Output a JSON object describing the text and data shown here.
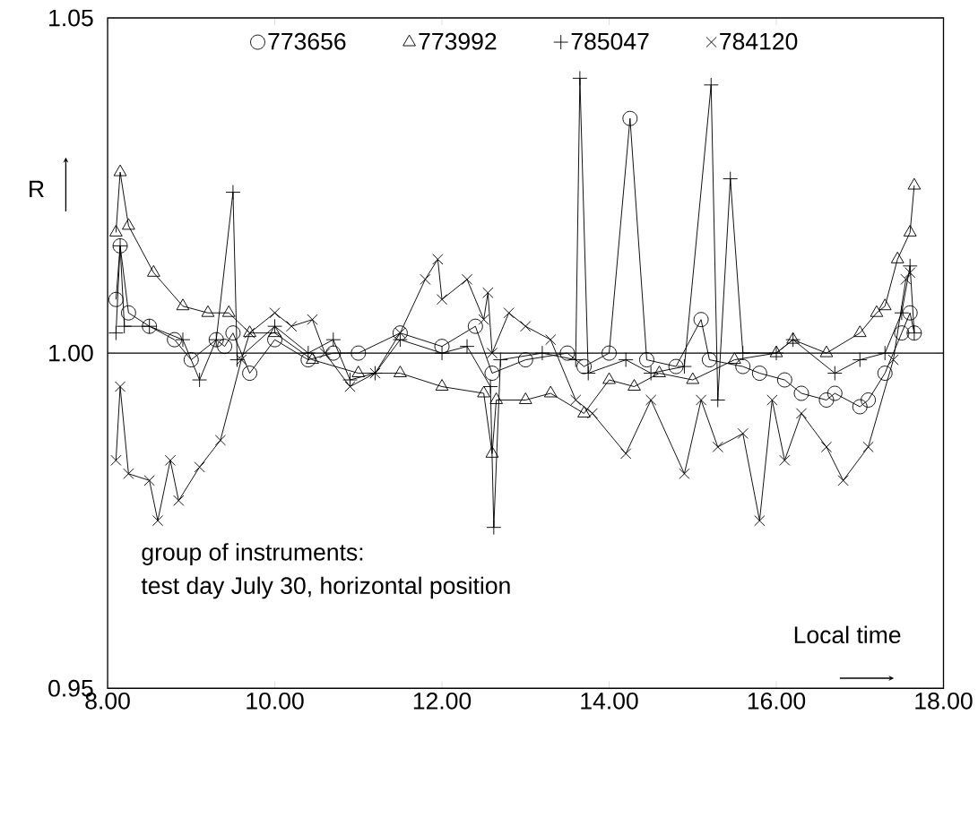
{
  "chart_data": {
    "type": "line",
    "xlabel": "Local time",
    "ylabel": "R",
    "annotations": [
      "group of instruments:",
      "test day July 30, horizontal position"
    ],
    "xlim": [
      8,
      18
    ],
    "ylim": [
      0.95,
      1.05
    ],
    "xticks": [
      {
        "value": 8,
        "label": "8.00"
      },
      {
        "value": 10,
        "label": "10.00"
      },
      {
        "value": 12,
        "label": "12.00"
      },
      {
        "value": 14,
        "label": "14.00"
      },
      {
        "value": 16,
        "label": "16.00"
      },
      {
        "value": 18,
        "label": "18.00"
      }
    ],
    "yticks": [
      {
        "value": 0.95,
        "label": "0.95"
      },
      {
        "value": 1.0,
        "label": "1.00"
      },
      {
        "value": 1.05,
        "label": "1.05"
      }
    ],
    "grid": false,
    "legend": "top",
    "ref_lines": [
      {
        "axis": "y",
        "value": 1.0,
        "color": "#000000"
      }
    ],
    "series": [
      {
        "name": "773656",
        "color": "#000000",
        "marker": "circle",
        "x": [
          8.1,
          8.15,
          8.25,
          8.5,
          8.8,
          9.0,
          9.3,
          9.4,
          9.5,
          9.7,
          10.0,
          10.4,
          10.7,
          11.0,
          11.5,
          12.0,
          12.4,
          12.6,
          13.0,
          13.5,
          13.7,
          14.0,
          14.25,
          14.45,
          14.8,
          15.1,
          15.2,
          15.6,
          15.8,
          16.1,
          16.3,
          16.6,
          16.7,
          17.0,
          17.1,
          17.3,
          17.5,
          17.6,
          17.65
        ],
        "values": [
          1.008,
          1.016,
          1.006,
          1.004,
          1.002,
          0.999,
          1.002,
          1.001,
          1.003,
          0.997,
          1.002,
          0.999,
          1.0,
          1.0,
          1.003,
          1.001,
          1.004,
          0.997,
          0.999,
          1.0,
          0.998,
          1.0,
          1.035,
          0.999,
          0.998,
          1.005,
          0.999,
          0.998,
          0.997,
          0.996,
          0.994,
          0.993,
          0.994,
          0.992,
          0.993,
          0.997,
          1.003,
          1.006,
          1.003
        ]
      },
      {
        "name": "773992",
        "color": "#000000",
        "marker": "triangle",
        "x": [
          8.1,
          8.15,
          8.25,
          8.55,
          8.9,
          9.2,
          9.45,
          9.7,
          10.0,
          10.45,
          11.0,
          11.5,
          12.0,
          12.5,
          12.6,
          12.65,
          13.0,
          13.3,
          13.7,
          14.0,
          14.3,
          14.6,
          15.0,
          15.5,
          16.0,
          16.2,
          16.6,
          17.0,
          17.2,
          17.3,
          17.45,
          17.6,
          17.65
        ],
        "values": [
          1.018,
          1.027,
          1.019,
          1.012,
          1.007,
          1.006,
          1.006,
          1.003,
          1.003,
          0.999,
          0.997,
          0.997,
          0.995,
          0.994,
          0.985,
          0.993,
          0.993,
          0.994,
          0.991,
          0.996,
          0.995,
          0.997,
          0.996,
          0.999,
          1.0,
          1.002,
          1.0,
          1.003,
          1.006,
          1.007,
          1.014,
          1.018,
          1.025
        ]
      },
      {
        "name": "785047",
        "color": "#000000",
        "marker": "plus",
        "x": [
          8.1,
          8.15,
          8.2,
          8.5,
          8.9,
          9.1,
          9.3,
          9.5,
          9.55,
          10.0,
          10.4,
          10.7,
          10.9,
          11.2,
          11.5,
          12.0,
          12.3,
          12.58,
          12.62,
          12.7,
          13.2,
          13.6,
          13.65,
          13.75,
          14.2,
          14.5,
          14.9,
          15.22,
          15.3,
          15.45,
          15.6,
          16.0,
          16.2,
          16.7,
          17.0,
          17.3,
          17.5,
          17.6,
          17.65
        ],
        "values": [
          1.003,
          1.016,
          1.004,
          1.004,
          1.002,
          0.996,
          1.002,
          1.024,
          0.999,
          1.004,
          1.0,
          1.002,
          0.996,
          0.997,
          1.002,
          1.0,
          1.001,
          0.995,
          0.974,
          0.999,
          1.0,
          0.999,
          1.041,
          0.997,
          0.999,
          0.997,
          0.998,
          1.04,
          0.993,
          1.026,
          1.0,
          1.0,
          1.002,
          0.997,
          0.999,
          1.0,
          1.006,
          1.013,
          1.003
        ]
      },
      {
        "name": "784120",
        "color": "#000000",
        "marker": "cross",
        "x": [
          8.1,
          8.15,
          8.25,
          8.5,
          8.6,
          8.75,
          8.85,
          9.1,
          9.35,
          9.6,
          9.7,
          10.0,
          10.2,
          10.45,
          10.6,
          10.9,
          11.2,
          11.5,
          11.8,
          11.95,
          12.0,
          12.3,
          12.5,
          12.55,
          12.6,
          12.8,
          13.0,
          13.3,
          13.6,
          13.8,
          14.2,
          14.5,
          14.9,
          15.1,
          15.3,
          15.6,
          15.8,
          15.95,
          16.1,
          16.3,
          16.6,
          16.8,
          17.1,
          17.4,
          17.55,
          17.6
        ],
        "values": [
          0.984,
          0.995,
          0.982,
          0.981,
          0.975,
          0.984,
          0.978,
          0.983,
          0.987,
          0.999,
          1.003,
          1.006,
          1.004,
          1.005,
          1.0,
          0.995,
          0.997,
          1.003,
          1.011,
          1.014,
          1.008,
          1.011,
          1.005,
          1.009,
          1.0,
          1.006,
          1.004,
          1.002,
          0.993,
          0.991,
          0.985,
          0.993,
          0.982,
          0.993,
          0.986,
          0.988,
          0.975,
          0.993,
          0.984,
          0.991,
          0.986,
          0.981,
          0.986,
          0.999,
          1.011,
          1.012
        ]
      }
    ]
  }
}
